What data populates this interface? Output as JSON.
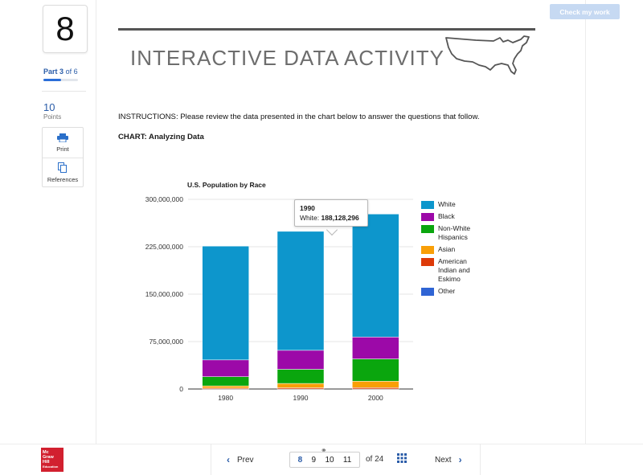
{
  "question": {
    "number": "8"
  },
  "progress": {
    "part_word": "Part",
    "part_current": "3",
    "part_of": "of 6",
    "fraction": 0.5
  },
  "points": {
    "value": "10",
    "label": "Points"
  },
  "tools": {
    "print_label": "Print",
    "references_label": "References"
  },
  "header": {
    "check_button": "Check my work",
    "title": "INTERACTIVE DATA ACTIVITY"
  },
  "content": {
    "instructions": "INSTRUCTIONS: Please review the data presented in the chart below to answer the questions that follow.",
    "chart_label": "CHART: Analyzing Data"
  },
  "tooltip": {
    "year": "1990",
    "label": "White:",
    "value": "188,128,296"
  },
  "chart_data": {
    "type": "bar",
    "stacked": true,
    "title": "U.S. Population by Race",
    "categories": [
      "1980",
      "1990",
      "2000"
    ],
    "ylim": [
      0,
      300000000
    ],
    "yticks": [
      "0",
      "75,000,000",
      "150,000,000",
      "225,000,000",
      "300,000,000"
    ],
    "grid": true,
    "legend_position": "right",
    "series": [
      {
        "name": "White",
        "color": "#0d96cc",
        "values": [
          180000000,
          188128296,
          194500000
        ]
      },
      {
        "name": "Black",
        "color": "#9c09a8",
        "values": [
          26500000,
          30000000,
          34600000
        ]
      },
      {
        "name": "Non-White Hispanics",
        "color": "#0aa60e",
        "values": [
          14600000,
          22400000,
          35300000
        ]
      },
      {
        "name": "Asian",
        "color": "#f99f07",
        "values": [
          3500000,
          6900000,
          10200000
        ]
      },
      {
        "name": "American Indian and Eskimo",
        "color": "#dd3a08",
        "values": [
          1400000,
          1900000,
          2100000
        ]
      },
      {
        "name": "Other",
        "color": "#2f64d4",
        "values": [
          0,
          0,
          0
        ]
      }
    ]
  },
  "pager": {
    "prev_label": "Prev",
    "next_label": "Next",
    "pages": [
      "8",
      "9",
      "10",
      "11"
    ],
    "of_label": "of",
    "total": "24"
  },
  "logo": {
    "line1": "Mc",
    "line2": "Graw",
    "line3": "Hill",
    "line4": "Education"
  }
}
